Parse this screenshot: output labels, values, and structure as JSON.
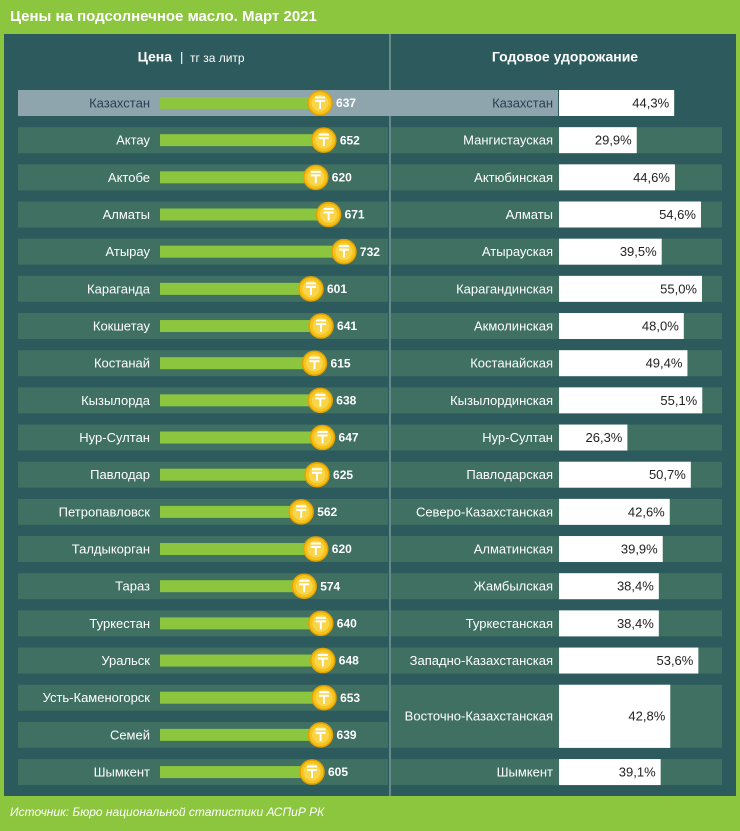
{
  "title": "Цены на подсолнечное масло. Март 2021",
  "source": "Источник: Бюро национальной статистики АСПиР РК",
  "chart_data": [
    {
      "type": "bar",
      "title": "Цена",
      "subtitle": "тг за литр",
      "categories": [
        "Казахстан",
        "Актау",
        "Актобе",
        "Алматы",
        "Атырау",
        "Караганда",
        "Кокшетау",
        "Костанай",
        "Кызылорда",
        "Нур-Султан",
        "Павлодар",
        "Петропавловск",
        "Талдыкорган",
        "Тараз",
        "Туркестан",
        "Уральск",
        "Усть-Каменогорск",
        "Семей",
        "Шымкент"
      ],
      "values": [
        637,
        652,
        620,
        671,
        732,
        601,
        641,
        615,
        638,
        647,
        625,
        562,
        620,
        574,
        640,
        648,
        653,
        639,
        605
      ],
      "color": "#8cc63f",
      "xlim": [
        0,
        800
      ]
    },
    {
      "type": "bar",
      "title": "Годовое удорожание",
      "categories": [
        "Казахстан",
        "Мангистауская",
        "Актюбинская",
        "Алматы",
        "Атырауская",
        "Карагандинская",
        "Акмолинская",
        "Костанайская",
        "Кызылординская",
        "Нур-Султан",
        "Павлодарская",
        "Северо-Казахстанская",
        "Алматинская",
        "Жамбылская",
        "Туркестанская",
        "Западно-Казахстанская",
        "Восточно-Казахстанская",
        "Шымкент"
      ],
      "values": [
        44.3,
        29.9,
        44.6,
        54.6,
        39.5,
        55.0,
        48.0,
        49.4,
        55.1,
        26.3,
        50.7,
        42.6,
        39.9,
        38.4,
        38.4,
        53.6,
        42.8,
        39.1
      ],
      "value_labels": [
        "44,3%",
        "29,9%",
        "44,6%",
        "54,6%",
        "39,5%",
        "55,0%",
        "48,0%",
        "49,4%",
        "55,1%",
        "26,3%",
        "50,7%",
        "42,6%",
        "39,9%",
        "38,4%",
        "38,4%",
        "53,6%",
        "42,8%",
        "39,1%"
      ],
      "color": "#ffffff",
      "xlim": [
        0,
        60
      ]
    }
  ]
}
